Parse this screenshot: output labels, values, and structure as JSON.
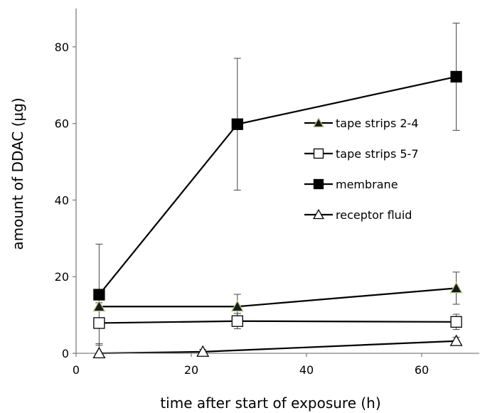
{
  "chart_data": {
    "type": "line",
    "title": "",
    "xlabel": "time after start of exposure (h)",
    "ylabel": "amount of DDAC (µg)",
    "xlim": [
      0,
      70
    ],
    "ylim": [
      0,
      90
    ],
    "xticks": [
      0,
      20,
      40,
      60
    ],
    "yticks": [
      0,
      20,
      40,
      60,
      80
    ],
    "grid": false,
    "legend_position": "right",
    "series": [
      {
        "name": "tape strips 2-4",
        "marker": "filled-triangle",
        "marker_fill": "#1a1a1a",
        "marker_edge": "#b5c98a",
        "points": [
          {
            "x": 4,
            "y": 12.2,
            "err": 1.0
          },
          {
            "x": 28,
            "y": 12.2,
            "err": 3.2
          },
          {
            "x": 66,
            "y": 17.0,
            "err": 4.2
          }
        ]
      },
      {
        "name": "tape strips 5-7",
        "marker": "open-square",
        "marker_fill": "#ffffff",
        "marker_edge": "#000000",
        "points": [
          {
            "x": 4,
            "y": 7.9,
            "err": 1.0
          },
          {
            "x": 28,
            "y": 8.4,
            "err": 2.0
          },
          {
            "x": 66,
            "y": 8.2,
            "err": 2.0
          }
        ]
      },
      {
        "name": "membrane",
        "marker": "filled-square",
        "marker_fill": "#000000",
        "marker_edge": "#000000",
        "points": [
          {
            "x": 4,
            "y": 15.3,
            "err": 13.2
          },
          {
            "x": 28,
            "y": 59.8,
            "err": 17.2
          },
          {
            "x": 66,
            "y": 72.2,
            "err": 14.0
          }
        ]
      },
      {
        "name": "receptor fluid",
        "marker": "open-triangle",
        "marker_fill": "#ffffff",
        "marker_edge": "#000000",
        "points": [
          {
            "x": 4,
            "y": 0.0,
            "err": 2.5
          },
          {
            "x": 22,
            "y": 0.4,
            "err": 0.6
          },
          {
            "x": 66,
            "y": 3.2,
            "err": 1.0
          }
        ]
      }
    ]
  }
}
